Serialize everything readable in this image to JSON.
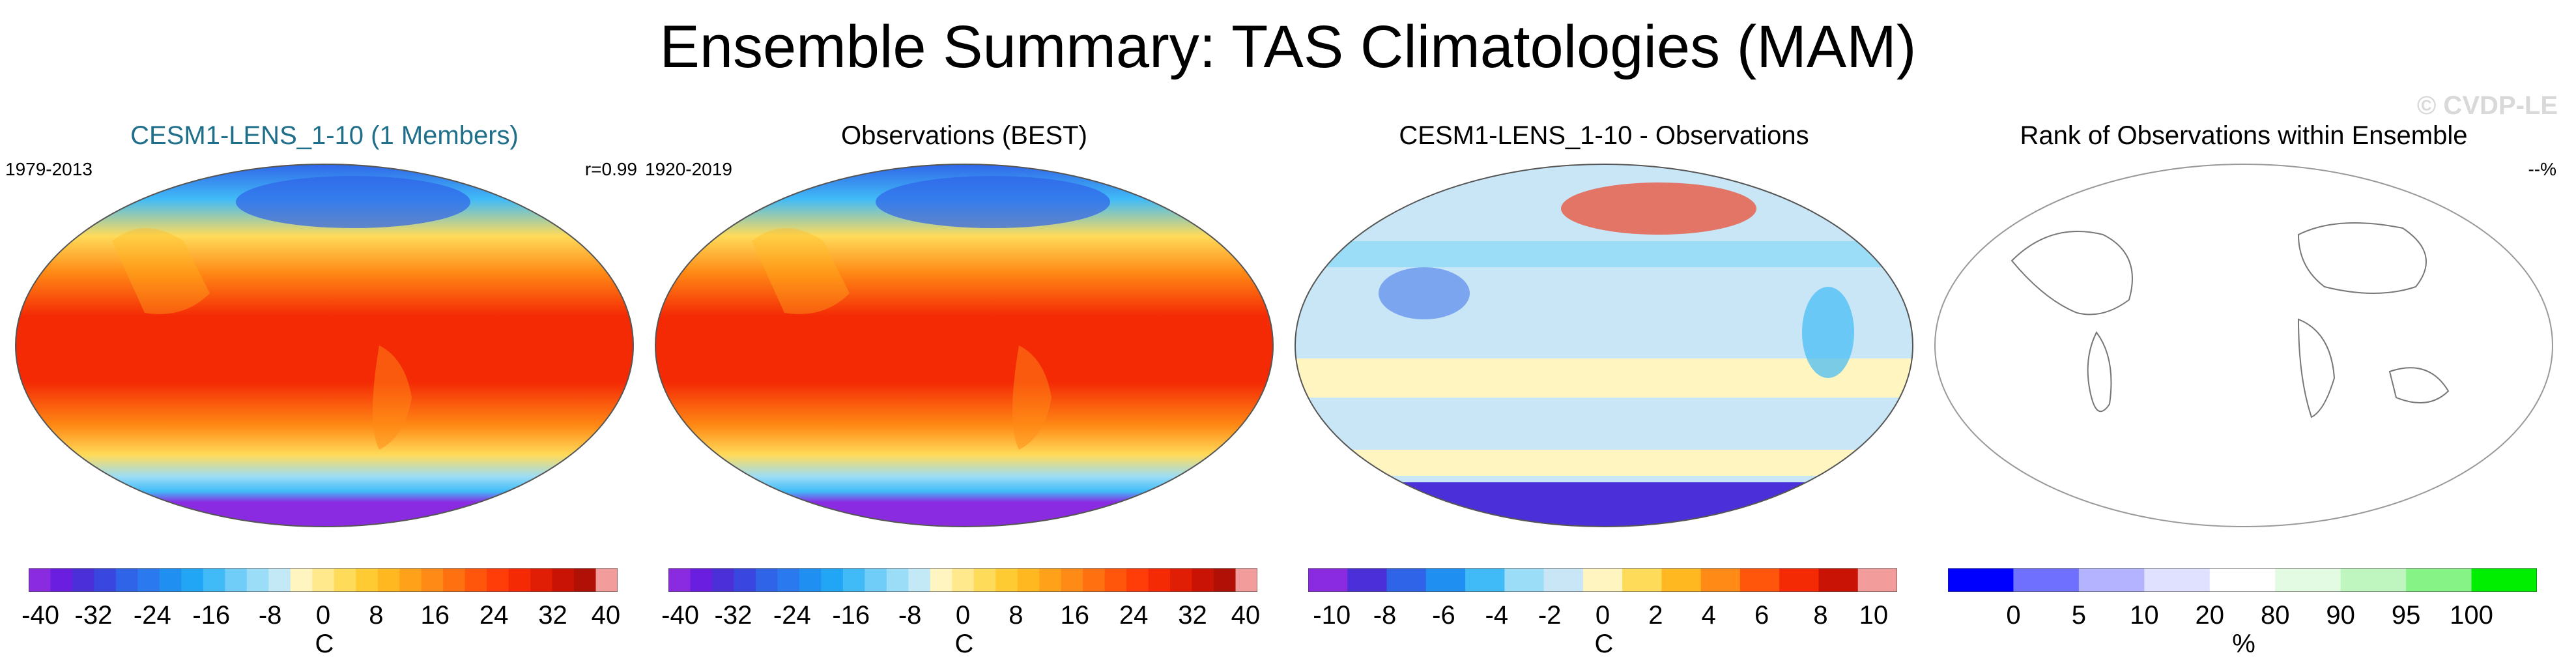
{
  "title": "Ensemble Summary: TAS Climatologies (MAM)",
  "watermark": "© CVDP-LE",
  "colors": {
    "accent_title": "#1f6f8b",
    "temp_scale": [
      "#8a2be2",
      "#6a1fe0",
      "#4b2fd8",
      "#3a46e0",
      "#2f63e8",
      "#2b79ee",
      "#1f8ff2",
      "#20a6f5",
      "#41bbf7",
      "#6fcdf7",
      "#9bddf7",
      "#c3e9f7",
      "#fff5c0",
      "#ffe98c",
      "#ffdb5a",
      "#ffcb33",
      "#ffb81f",
      "#ffa21a",
      "#ff8a15",
      "#ff7010",
      "#ff560c",
      "#ff3d08",
      "#f42a05",
      "#e01d05",
      "#c91405",
      "#b01005",
      "#f39c9c"
    ],
    "diff_scale": [
      "#8a2be2",
      "#4b2fd8",
      "#2f63e8",
      "#1f8ff2",
      "#41bbf7",
      "#9bddf7",
      "#c9e6f7",
      "#fff5c0",
      "#ffdb5a",
      "#ffb81f",
      "#ff8a15",
      "#ff560c",
      "#f42a05",
      "#c91405",
      "#f39c9c"
    ],
    "rank_scale": [
      "#0000ff",
      "#7070ff",
      "#b3b3ff",
      "#e0e0ff",
      "#ffffff",
      "#e2fbe2",
      "#bff5bf",
      "#86f386",
      "#00ee00"
    ]
  },
  "panels": [
    {
      "title": "CESM1-LENS_1-10 (1 Members)",
      "left_label": "1979-2013",
      "right_label": "r=0.99",
      "units": "C",
      "tick_labels": [
        "-40",
        "-32",
        "-24",
        "-16",
        "-8",
        "0",
        "8",
        "16",
        "24",
        "32",
        "40"
      ],
      "chart_data": {
        "type": "heatmap",
        "variable": "TAS",
        "season": "MAM",
        "period": "1979-2013",
        "pattern_correlation": 0.99,
        "colorbar": {
          "min": -40,
          "max": 40,
          "step": 8,
          "units": "C"
        }
      }
    },
    {
      "title": "Observations (BEST)",
      "left_label": "1920-2019",
      "right_label": "",
      "units": "C",
      "tick_labels": [
        "-40",
        "-32",
        "-24",
        "-16",
        "-8",
        "0",
        "8",
        "16",
        "24",
        "32",
        "40"
      ],
      "chart_data": {
        "type": "heatmap",
        "variable": "TAS",
        "season": "MAM",
        "period": "1920-2019",
        "colorbar": {
          "min": -40,
          "max": 40,
          "step": 8,
          "units": "C"
        }
      }
    },
    {
      "title": "CESM1-LENS_1-10 - Observations",
      "left_label": "",
      "right_label": "",
      "units": "C",
      "tick_labels": [
        "-10",
        "-8",
        "-6",
        "-4",
        "-2",
        "0",
        "2",
        "4",
        "6",
        "8",
        "10"
      ],
      "chart_data": {
        "type": "heatmap",
        "variable": "TAS difference",
        "season": "MAM",
        "colorbar": {
          "min": -10,
          "max": 10,
          "step": 2,
          "units": "C"
        }
      }
    },
    {
      "title": "Rank of Observations within Ensemble",
      "left_label": "",
      "right_label": "--%",
      "units": "%",
      "tick_labels": [
        "0",
        "5",
        "10",
        "20",
        "80",
        "90",
        "95",
        "100"
      ],
      "chart_data": {
        "type": "heatmap",
        "variable": "rank",
        "colorbar": {
          "levels": [
            0,
            5,
            10,
            20,
            80,
            90,
            95,
            100
          ],
          "units": "%"
        }
      }
    }
  ]
}
